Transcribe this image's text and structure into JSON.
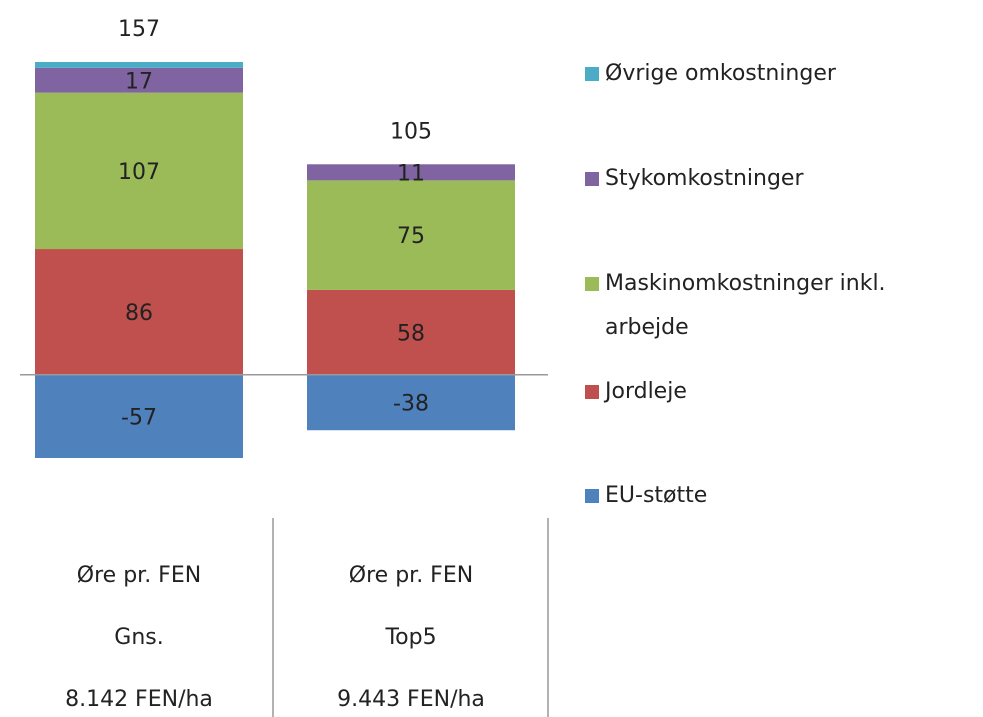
{
  "chart_data": {
    "type": "stacked-bar",
    "categories": [
      [
        "Øre pr. FEN",
        "Gns.",
        "8.142 FEN/ha"
      ],
      [
        "Øre pr. FEN",
        "Top5",
        "9.443 FEN/ha"
      ]
    ],
    "totals": [
      157,
      105
    ],
    "series": [
      {
        "name": "EU-støtte",
        "color": "#4f81bd",
        "values": [
          -57,
          -38
        ],
        "data_labels": true
      },
      {
        "name": "Jordleje",
        "color": "#c0504d",
        "values": [
          86,
          58
        ],
        "data_labels": true
      },
      {
        "name": "Maskinomkostninger inkl. arbejde",
        "color": "#9bbb59",
        "values": [
          107,
          75
        ],
        "data_labels": true
      },
      {
        "name": "Stykomkostninger",
        "color": "#8064a2",
        "values": [
          17,
          11
        ],
        "data_labels": true
      },
      {
        "name": "Øvrige omkostninger",
        "color": "#4bacc6",
        "values": [
          4,
          0
        ],
        "data_labels": false
      }
    ],
    "legend": "right"
  }
}
